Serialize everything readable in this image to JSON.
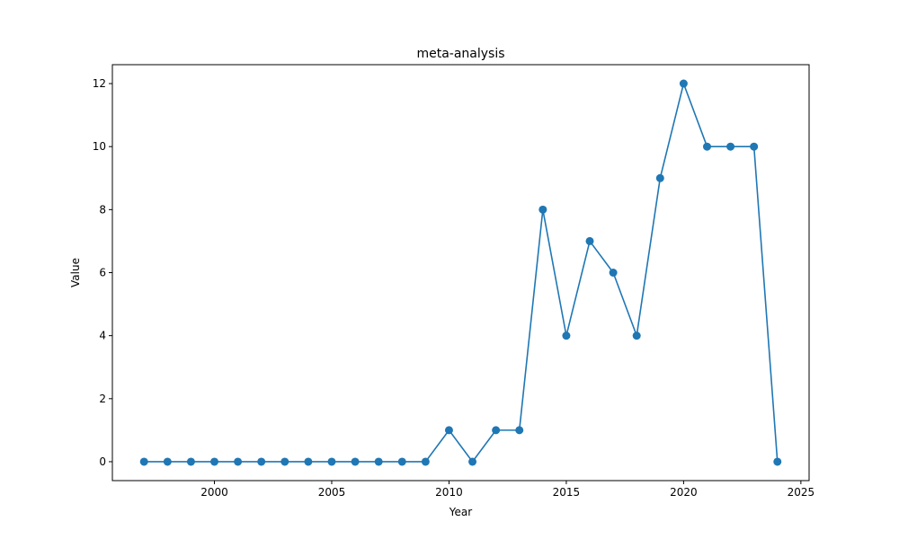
{
  "chart_data": {
    "type": "line",
    "title": "meta-analysis",
    "xlabel": "Year",
    "ylabel": "Value",
    "xlim": [
      1995.65,
      2025.35
    ],
    "ylim": [
      -0.6,
      12.6
    ],
    "xticks": [
      2000,
      2005,
      2010,
      2015,
      2020,
      2025
    ],
    "yticks": [
      0,
      2,
      4,
      6,
      8,
      10,
      12
    ],
    "grid": false,
    "series": [
      {
        "color": "#1f77b4",
        "marker": "circle",
        "x": [
          1997,
          1998,
          1999,
          2000,
          2001,
          2002,
          2003,
          2004,
          2005,
          2006,
          2007,
          2008,
          2009,
          2010,
          2011,
          2012,
          2013,
          2014,
          2015,
          2016,
          2017,
          2018,
          2019,
          2020,
          2021,
          2022,
          2023,
          2024
        ],
        "y": [
          0,
          0,
          0,
          0,
          0,
          0,
          0,
          0,
          0,
          0,
          0,
          0,
          0,
          1,
          0,
          1,
          1,
          8,
          4,
          7,
          6,
          4,
          9,
          12,
          10,
          10,
          10,
          0
        ]
      }
    ]
  }
}
